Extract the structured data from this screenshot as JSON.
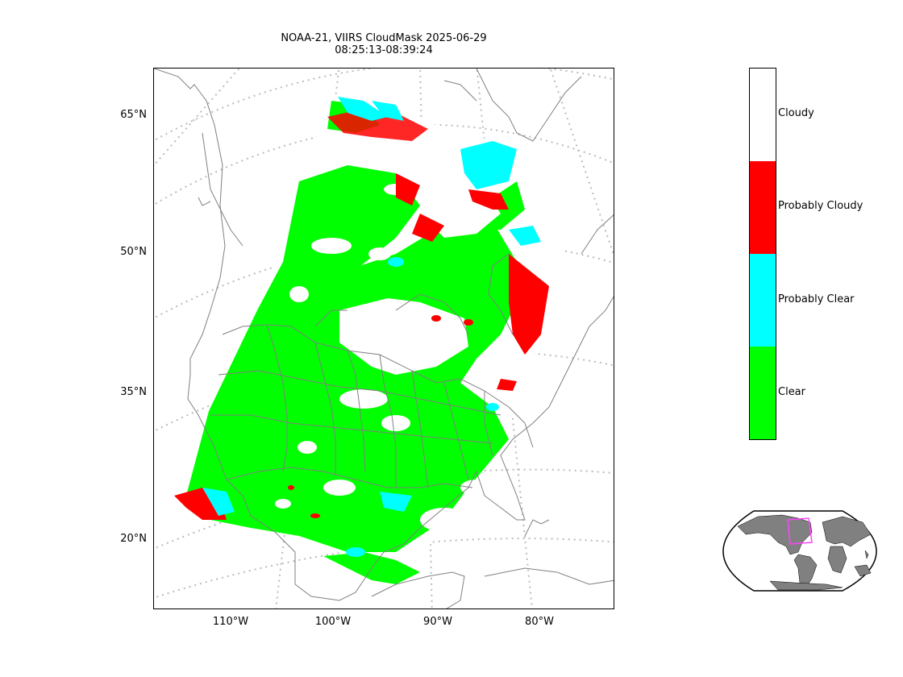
{
  "title": {
    "line1": "NOAA-21, VIIRS CloudMask 2025-06-29",
    "line2": "08:25:13-08:39:24"
  },
  "map": {
    "lat_labels": [
      "65°N",
      "50°N",
      "35°N",
      "20°N"
    ],
    "lon_labels": [
      "110°W",
      "100°W",
      "90°W",
      "80°W"
    ],
    "graticule_color": "#bbbbbb",
    "coastline_color": "#808080"
  },
  "colorbar": {
    "categories": [
      {
        "label": "Cloudy",
        "color": "#ffffff"
      },
      {
        "label": "Probably Cloudy",
        "color": "#ff0000"
      },
      {
        "label": "Probably Clear",
        "color": "#00ffff"
      },
      {
        "label": "Clear",
        "color": "#00ff00"
      }
    ]
  },
  "inset": {
    "land_color": "#808080",
    "box_color": "#ff44ff"
  }
}
